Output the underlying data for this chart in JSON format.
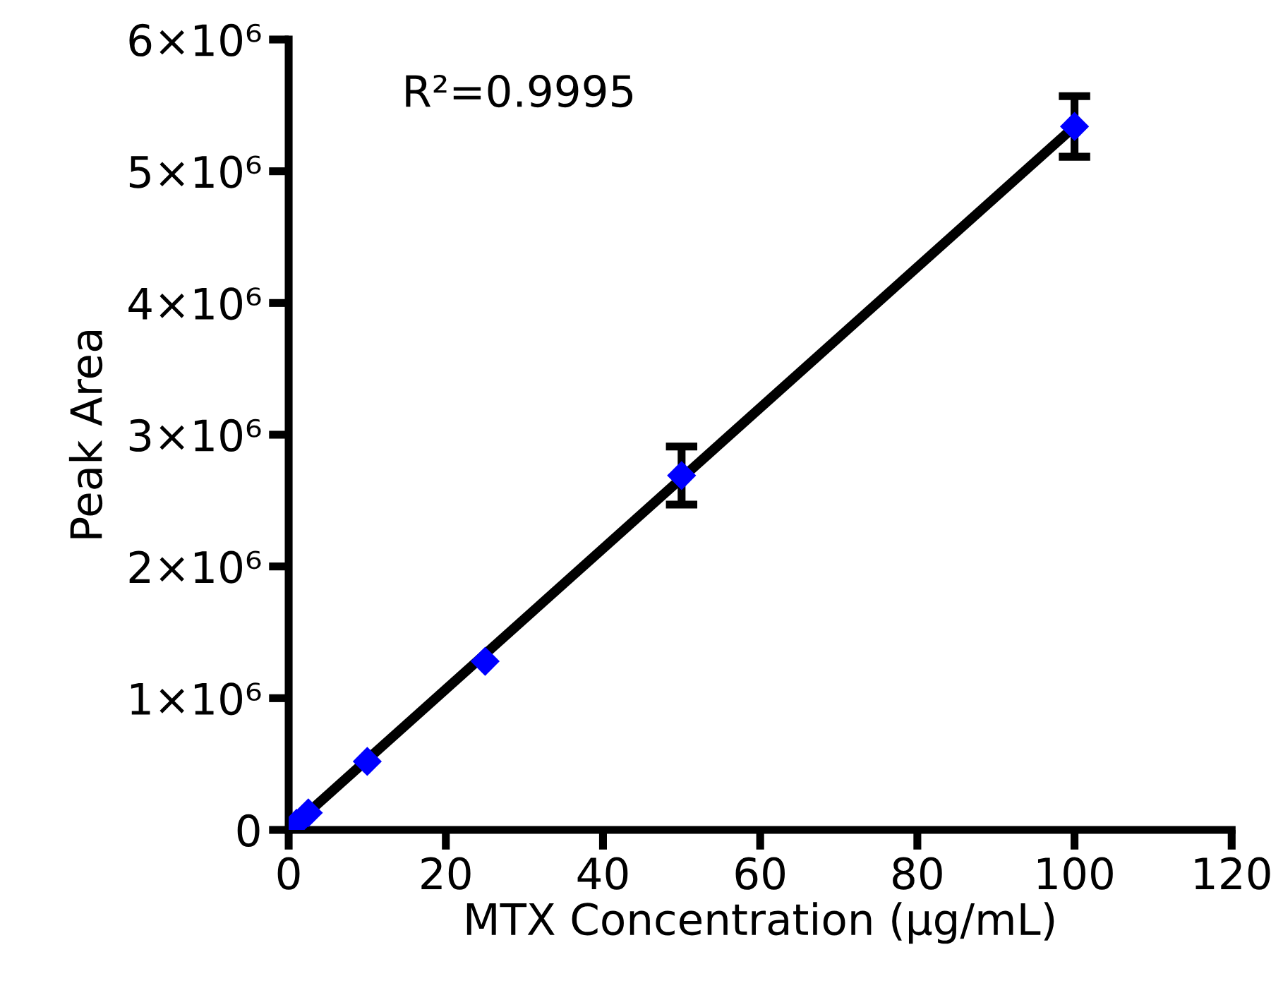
{
  "chart_data": {
    "type": "scatter",
    "xlabel": "MTX Concentration (μg/mL)",
    "ylabel": "Peak Area",
    "annotations": [
      "R²=0.9995"
    ],
    "series": [
      {
        "color": "#0000ff",
        "marker": "diamond",
        "x": [
          1,
          2.5,
          10,
          25,
          50,
          100
        ],
        "values": [
          50000,
          130000,
          520000,
          1280000,
          2690000,
          5340000
        ],
        "errors": [
          null,
          null,
          null,
          null,
          220000,
          230000
        ]
      },
      {
        "type": "line",
        "color": "#000000",
        "x": [
          0,
          100
        ],
        "values": [
          0,
          5340000
        ]
      }
    ],
    "xlim": [
      0,
      120
    ],
    "xticks": [
      0,
      20,
      40,
      60,
      80,
      100,
      120
    ],
    "ylim": [
      0,
      6000000
    ],
    "yticks": [
      0,
      {
        "value": 1000000,
        "label": "1×10⁶"
      },
      {
        "value": 2000000,
        "label": "2×10⁶"
      },
      {
        "value": 3000000,
        "label": "3×10⁶"
      },
      {
        "value": 4000000,
        "label": "4×10⁶"
      },
      {
        "value": 5000000,
        "label": "5×10⁶"
      },
      {
        "value": 6000000,
        "label": "6×10⁶"
      }
    ],
    "grid": false,
    "legend": false
  }
}
